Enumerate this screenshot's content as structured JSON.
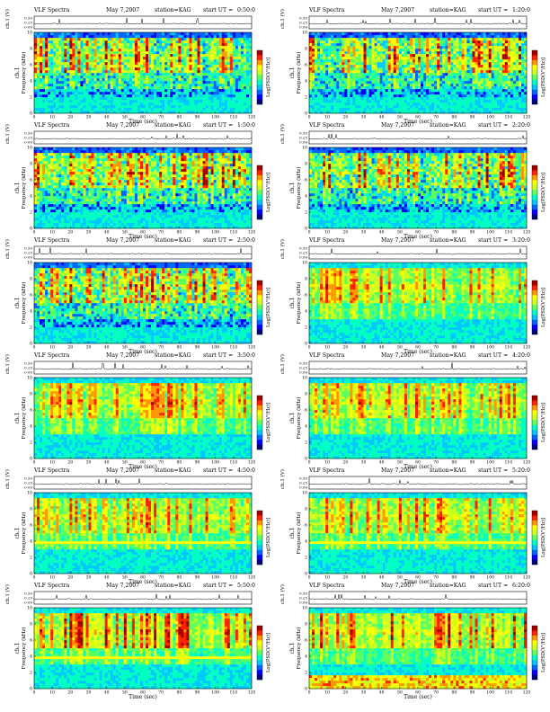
{
  "figure": {
    "title_prefix": "VLF Spectra",
    "date": "May 7,2007",
    "station_label": "station=KAG",
    "start_prefix": "start UT ="
  },
  "colors": {
    "colormap": [
      "#00007a",
      "#0000ff",
      "#0066ff",
      "#00c8ff",
      "#00ffc0",
      "#5aff60",
      "#c8ff1e",
      "#ffff00",
      "#ff9900",
      "#ff2200",
      "#a50000"
    ],
    "background": "#ffffff",
    "axis": "#000000"
  },
  "chart_data": [
    {
      "type": "heatmap",
      "start_ut": "0:50:0",
      "intensity": "high",
      "profile": "dark-upper",
      "xlabel": "Time (sec)",
      "ylabel": "Frequency (kHz)",
      "channel_label": "ch.1",
      "channel_axis_label": "ch.1 (V)",
      "colorbar_label": "Log[PSD(V²/Hz)]",
      "xlim": [
        0,
        120
      ],
      "ylim": [
        0,
        10
      ],
      "x_ticks": [
        "0",
        "10",
        "20",
        "30",
        "40",
        "50",
        "60",
        "70",
        "80",
        "90",
        "100",
        "110",
        "120"
      ],
      "y_ticks": [
        "0",
        "2",
        "4",
        "6",
        "8",
        "10"
      ],
      "ch_ticks": [
        "0.50",
        "0.25",
        "0.00"
      ]
    },
    {
      "type": "heatmap",
      "start_ut": "1:20:0",
      "intensity": "high",
      "profile": "dark-upper",
      "xlabel": "Time (sec)",
      "ylabel": "Frequency (kHz)",
      "channel_label": "ch.1",
      "channel_axis_label": "ch.1 (V)",
      "colorbar_label": "Log[PSD(V²/Hz)]",
      "xlim": [
        0,
        120
      ],
      "ylim": [
        0,
        10
      ],
      "x_ticks": [
        "0",
        "10",
        "20",
        "30",
        "40",
        "50",
        "60",
        "70",
        "80",
        "90",
        "100",
        "110",
        "120"
      ],
      "y_ticks": [
        "0",
        "2",
        "4",
        "6",
        "8",
        "10"
      ],
      "ch_ticks": [
        "0.50",
        "0.25",
        "0.00"
      ]
    },
    {
      "type": "heatmap",
      "start_ut": "1:50:0",
      "intensity": "high",
      "profile": "dark-upper",
      "xlabel": "Time (sec)",
      "ylabel": "Frequency (kHz)",
      "channel_label": "ch.1",
      "channel_axis_label": "ch.1 (V)",
      "colorbar_label": "Log[PSD(V²/Hz)]",
      "xlim": [
        0,
        120
      ],
      "ylim": [
        0,
        10
      ],
      "x_ticks": [
        "0",
        "10",
        "20",
        "30",
        "40",
        "50",
        "60",
        "70",
        "80",
        "90",
        "100",
        "110",
        "120"
      ],
      "y_ticks": [
        "0",
        "2",
        "4",
        "6",
        "8",
        "10"
      ],
      "ch_ticks": [
        "0.50",
        "0.25",
        "0.00"
      ]
    },
    {
      "type": "heatmap",
      "start_ut": "2:20:0",
      "intensity": "high",
      "profile": "dark-upper",
      "xlabel": "Time (sec)",
      "ylabel": "Frequency (kHz)",
      "channel_label": "ch.1",
      "channel_axis_label": "ch.1 (V)",
      "colorbar_label": "Log[PSD(V²/Hz)]",
      "xlim": [
        0,
        120
      ],
      "ylim": [
        0,
        10
      ],
      "x_ticks": [
        "0",
        "10",
        "20",
        "30",
        "40",
        "50",
        "60",
        "70",
        "80",
        "90",
        "100",
        "110",
        "120"
      ],
      "y_ticks": [
        "0",
        "2",
        "4",
        "6",
        "8",
        "10"
      ],
      "ch_ticks": [
        "0.50",
        "0.25",
        "0.00"
      ]
    },
    {
      "type": "heatmap",
      "start_ut": "2:50:0",
      "intensity": "high",
      "profile": "dark-upper",
      "xlabel": "Time (sec)",
      "ylabel": "Frequency (kHz)",
      "channel_label": "ch.1",
      "channel_axis_label": "ch.1 (V)",
      "colorbar_label": "Log[PSD(V²/Hz)]",
      "xlim": [
        0,
        120
      ],
      "ylim": [
        0,
        10
      ],
      "x_ticks": [
        "0",
        "10",
        "20",
        "30",
        "40",
        "50",
        "60",
        "70",
        "80",
        "90",
        "100",
        "110",
        "120"
      ],
      "y_ticks": [
        "0",
        "2",
        "4",
        "6",
        "8",
        "10"
      ],
      "ch_ticks": [
        "0.50",
        "0.25",
        "0.00"
      ]
    },
    {
      "type": "heatmap",
      "start_ut": "3:20:0",
      "intensity": "medium",
      "profile": "green",
      "xlabel": "Time (sec)",
      "ylabel": "Frequency (kHz)",
      "channel_label": "ch.1",
      "channel_axis_label": "ch.1 (V)",
      "colorbar_label": "Log[PSD(V²/Hz)]",
      "xlim": [
        0,
        120
      ],
      "ylim": [
        0,
        10
      ],
      "x_ticks": [
        "0",
        "10",
        "20",
        "30",
        "40",
        "50",
        "60",
        "70",
        "80",
        "90",
        "100",
        "110",
        "120"
      ],
      "y_ticks": [
        "0",
        "2",
        "4",
        "6",
        "8",
        "10"
      ],
      "ch_ticks": [
        "0.50",
        "0.25",
        "0.00"
      ]
    },
    {
      "type": "heatmap",
      "start_ut": "3:50:0",
      "intensity": "medium",
      "profile": "green",
      "xlabel": "Time (sec)",
      "ylabel": "Frequency (kHz)",
      "channel_label": "ch.1",
      "channel_axis_label": "ch.1 (V)",
      "colorbar_label": "Log[PSD(V²/Hz)]",
      "xlim": [
        0,
        120
      ],
      "ylim": [
        0,
        10
      ],
      "x_ticks": [
        "0",
        "10",
        "20",
        "30",
        "40",
        "50",
        "60",
        "70",
        "80",
        "90",
        "100",
        "110",
        "120"
      ],
      "y_ticks": [
        "0",
        "2",
        "4",
        "6",
        "8",
        "10"
      ],
      "ch_ticks": [
        "0.50",
        "0.25",
        "0.00"
      ]
    },
    {
      "type": "heatmap",
      "start_ut": "4:20:0",
      "intensity": "medium",
      "profile": "green",
      "xlabel": "Time (sec)",
      "ylabel": "Frequency (kHz)",
      "channel_label": "ch.1",
      "channel_axis_label": "ch.1 (V)",
      "colorbar_label": "Log[PSD(V²/Hz)]",
      "xlim": [
        0,
        120
      ],
      "ylim": [
        0,
        10
      ],
      "x_ticks": [
        "0",
        "10",
        "20",
        "30",
        "40",
        "50",
        "60",
        "70",
        "80",
        "90",
        "100",
        "110",
        "120"
      ],
      "y_ticks": [
        "0",
        "2",
        "4",
        "6",
        "8",
        "10"
      ],
      "ch_ticks": [
        "0.50",
        "0.25",
        "0.00"
      ]
    },
    {
      "type": "heatmap",
      "start_ut": "4:50:0",
      "intensity": "medium",
      "profile": "green-line",
      "xlabel": "Time (sec)",
      "ylabel": "Frequency (kHz)",
      "channel_label": "ch.1",
      "channel_axis_label": "ch.1 (V)",
      "colorbar_label": "Log[PSD(V²/Hz)]",
      "xlim": [
        0,
        120
      ],
      "ylim": [
        0,
        10
      ],
      "x_ticks": [
        "0",
        "10",
        "20",
        "30",
        "40",
        "50",
        "60",
        "70",
        "80",
        "90",
        "100",
        "110",
        "120"
      ],
      "y_ticks": [
        "0",
        "2",
        "4",
        "6",
        "8",
        "10"
      ],
      "ch_ticks": [
        "0.50",
        "0.25",
        "0.00"
      ]
    },
    {
      "type": "heatmap",
      "start_ut": "5:20:0",
      "intensity": "medium",
      "profile": "green-line",
      "xlabel": "Time (sec)",
      "ylabel": "Frequency (kHz)",
      "channel_label": "ch.1",
      "channel_axis_label": "ch.1 (V)",
      "colorbar_label": "Log[PSD(V²/Hz)]",
      "xlim": [
        0,
        120
      ],
      "ylim": [
        0,
        10
      ],
      "x_ticks": [
        "0",
        "10",
        "20",
        "30",
        "40",
        "50",
        "60",
        "70",
        "80",
        "90",
        "100",
        "110",
        "120"
      ],
      "y_ticks": [
        "0",
        "2",
        "4",
        "6",
        "8",
        "10"
      ],
      "ch_ticks": [
        "0.50",
        "0.25",
        "0.00"
      ]
    },
    {
      "type": "heatmap",
      "start_ut": "5:50:0",
      "intensity": "high",
      "profile": "green-line",
      "xlabel": "Time (sec)",
      "ylabel": "Frequency (kHz)",
      "channel_label": "ch.1",
      "channel_axis_label": "ch.1 (V)",
      "colorbar_label": "Log[PSD(V²/Hz)]",
      "xlim": [
        0,
        120
      ],
      "ylim": [
        0,
        10
      ],
      "x_ticks": [
        "0",
        "10",
        "20",
        "30",
        "40",
        "50",
        "60",
        "70",
        "80",
        "90",
        "100",
        "110",
        "120"
      ],
      "y_ticks": [
        "0",
        "2",
        "4",
        "6",
        "8",
        "10"
      ],
      "ch_ticks": [
        "0.50",
        "0.25",
        "0.00"
      ]
    },
    {
      "type": "heatmap",
      "start_ut": "6:20:0",
      "intensity": "high",
      "profile": "green-low",
      "xlabel": "Time (sec)",
      "ylabel": "Frequency (kHz)",
      "channel_label": "ch.1",
      "channel_axis_label": "ch.1 (V)",
      "colorbar_label": "Log[PSD(V²/Hz)]",
      "xlim": [
        0,
        120
      ],
      "ylim": [
        0,
        10
      ],
      "x_ticks": [
        "0",
        "10",
        "20",
        "30",
        "40",
        "50",
        "60",
        "70",
        "80",
        "90",
        "100",
        "110",
        "120"
      ],
      "y_ticks": [
        "0",
        "2",
        "4",
        "6",
        "8",
        "10"
      ],
      "ch_ticks": [
        "0.50",
        "0.25",
        "0.00"
      ]
    }
  ]
}
